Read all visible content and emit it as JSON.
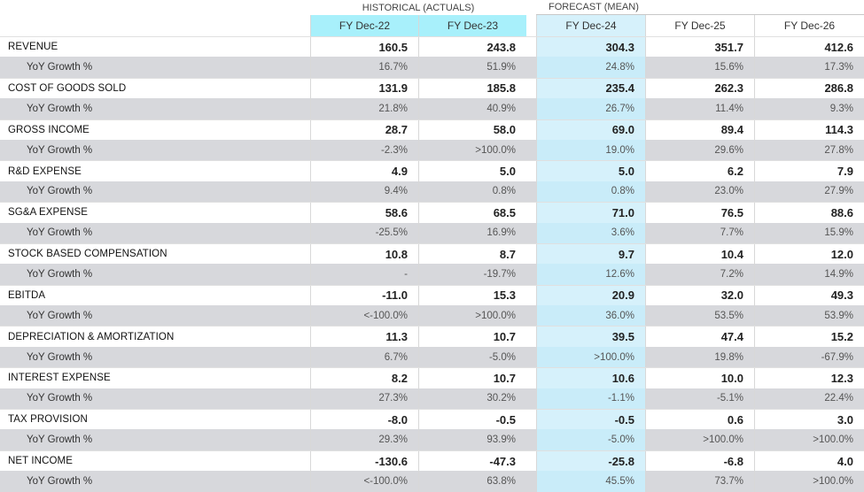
{
  "headers": {
    "historical_group": "HISTORICAL (ACTUALS)",
    "forecast_group": "FORECAST (MEAN)",
    "columns": [
      "FY Dec-22",
      "FY Dec-23",
      "FY Dec-24",
      "FY Dec-25",
      "FY Dec-26"
    ]
  },
  "rows": [
    {
      "label": "REVENUE",
      "values": [
        "160.5",
        "243.8",
        "304.3",
        "351.7",
        "412.6"
      ]
    },
    {
      "label": "YoY Growth %",
      "values": [
        "16.7%",
        "51.9%",
        "24.8%",
        "15.6%",
        "17.3%"
      ]
    },
    {
      "label": "COST OF GOODS SOLD",
      "values": [
        "131.9",
        "185.8",
        "235.4",
        "262.3",
        "286.8"
      ]
    },
    {
      "label": "YoY Growth %",
      "values": [
        "21.8%",
        "40.9%",
        "26.7%",
        "11.4%",
        "9.3%"
      ]
    },
    {
      "label": "GROSS INCOME",
      "values": [
        "28.7",
        "58.0",
        "69.0",
        "89.4",
        "114.3"
      ]
    },
    {
      "label": "YoY Growth %",
      "values": [
        "-2.3%",
        ">100.0%",
        "19.0%",
        "29.6%",
        "27.8%"
      ]
    },
    {
      "label": "R&D EXPENSE",
      "values": [
        "4.9",
        "5.0",
        "5.0",
        "6.2",
        "7.9"
      ]
    },
    {
      "label": "YoY Growth %",
      "values": [
        "9.4%",
        "0.8%",
        "0.8%",
        "23.0%",
        "27.9%"
      ]
    },
    {
      "label": "SG&A EXPENSE",
      "values": [
        "58.6",
        "68.5",
        "71.0",
        "76.5",
        "88.6"
      ]
    },
    {
      "label": "YoY Growth %",
      "values": [
        "-25.5%",
        "16.9%",
        "3.6%",
        "7.7%",
        "15.9%"
      ]
    },
    {
      "label": "STOCK BASED COMPENSATION",
      "values": [
        "10.8",
        "8.7",
        "9.7",
        "10.4",
        "12.0"
      ]
    },
    {
      "label": "YoY Growth %",
      "values": [
        "-",
        "-19.7%",
        "12.6%",
        "7.2%",
        "14.9%"
      ]
    },
    {
      "label": "EBITDA",
      "values": [
        "-11.0",
        "15.3",
        "20.9",
        "32.0",
        "49.3"
      ]
    },
    {
      "label": "YoY Growth %",
      "values": [
        "<-100.0%",
        ">100.0%",
        "36.0%",
        "53.5%",
        "53.9%"
      ]
    },
    {
      "label": "DEPRECIATION & AMORTIZATION",
      "values": [
        "11.3",
        "10.7",
        "39.5",
        "47.4",
        "15.2"
      ]
    },
    {
      "label": "YoY Growth %",
      "values": [
        "6.7%",
        "-5.0%",
        ">100.0%",
        "19.8%",
        "-67.9%"
      ]
    },
    {
      "label": "INTEREST EXPENSE",
      "values": [
        "8.2",
        "10.7",
        "10.6",
        "10.0",
        "12.3"
      ]
    },
    {
      "label": "YoY Growth %",
      "values": [
        "27.3%",
        "30.2%",
        "-1.1%",
        "-5.1%",
        "22.4%"
      ]
    },
    {
      "label": "TAX PROVISION",
      "values": [
        "-8.0",
        "-0.5",
        "-0.5",
        "0.6",
        "3.0"
      ]
    },
    {
      "label": "YoY Growth %",
      "values": [
        "29.3%",
        "93.9%",
        "-5.0%",
        ">100.0%",
        ">100.0%"
      ]
    },
    {
      "label": "NET INCOME",
      "values": [
        "-130.6",
        "-47.3",
        "-25.8",
        "-6.8",
        "4.0"
      ]
    },
    {
      "label": "YoY Growth %",
      "values": [
        "<-100.0%",
        "63.8%",
        "45.5%",
        "73.7%",
        ">100.0%"
      ]
    }
  ]
}
